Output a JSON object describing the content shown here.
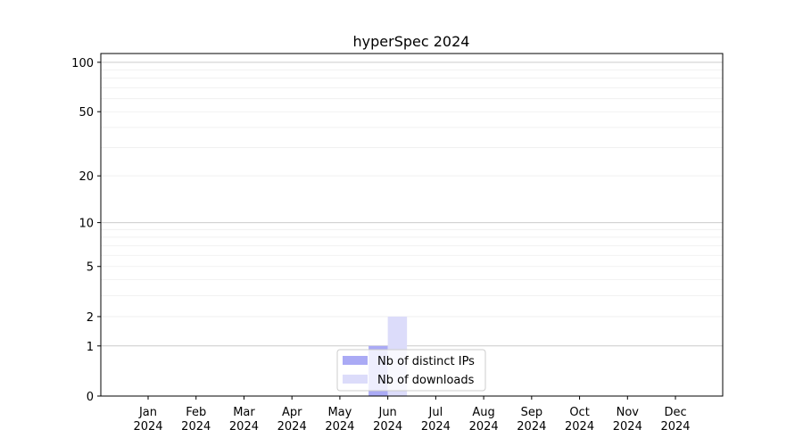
{
  "chart_data": {
    "type": "bar",
    "title": "hyperSpec 2024",
    "xlabel": "",
    "ylabel": "",
    "categories": [
      "Jan\n2024",
      "Feb\n2024",
      "Mar\n2024",
      "Apr\n2024",
      "May\n2024",
      "Jun\n2024",
      "Jul\n2024",
      "Aug\n2024",
      "Sep\n2024",
      "Oct\n2024",
      "Nov\n2024",
      "Dec\n2024"
    ],
    "series": [
      {
        "name": "Nb of distinct IPs",
        "color": "#aaaaf5",
        "values": [
          0,
          0,
          0,
          0,
          0,
          1,
          0,
          0,
          0,
          0,
          0,
          0
        ]
      },
      {
        "name": "Nb of downloads",
        "color": "#dcdcfa",
        "values": [
          0,
          0,
          0,
          0,
          0,
          2,
          0,
          0,
          0,
          0,
          0,
          0
        ]
      }
    ],
    "yscale": "log(1+y)",
    "yticks": [
      0,
      1,
      2,
      5,
      10,
      20,
      50,
      100
    ],
    "ylim": [
      0,
      113
    ],
    "grid": true,
    "legend": "bottom-center"
  }
}
